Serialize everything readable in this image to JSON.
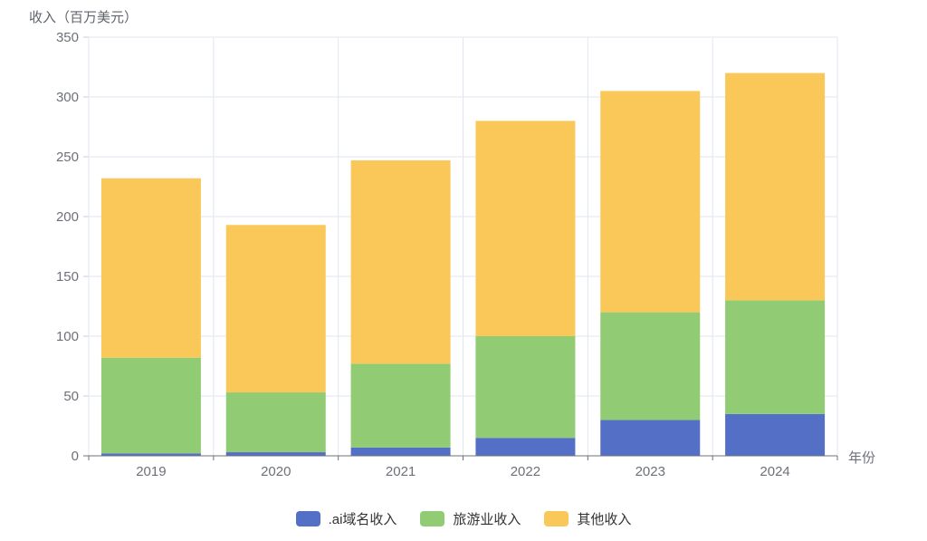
{
  "title": "收入（百万美元）",
  "x_axis_name": "年份",
  "colors": {
    "series_domain": "#5470C6",
    "series_tourism": "#91CC75",
    "series_other": "#FAC858",
    "grid_line": "#E0E6F1",
    "axis_line": "#6E7079",
    "tick_line": "#C9CEDC",
    "tick_label": "#6E7079",
    "axis_name": "#6E7079",
    "legend_text": "#333333",
    "background": "#FFFFFF"
  },
  "chart_data": {
    "type": "bar",
    "stacked": true,
    "title": "收入（百万美元）",
    "xlabel": "年份",
    "ylabel": "收入（百万美元）",
    "categories": [
      "2019",
      "2020",
      "2021",
      "2022",
      "2023",
      "2024"
    ],
    "series": [
      {
        "name": ".ai域名收入",
        "color": "#5470C6",
        "values": [
          2,
          3,
          7,
          15,
          30,
          35
        ]
      },
      {
        "name": "旅游业收入",
        "color": "#91CC75",
        "values": [
          80,
          50,
          70,
          85,
          90,
          95
        ]
      },
      {
        "name": "其他收入",
        "color": "#FAC858",
        "values": [
          150,
          140,
          170,
          180,
          185,
          190
        ]
      }
    ],
    "stack_totals": [
      232,
      193,
      247,
      280,
      305,
      320
    ],
    "ylim": [
      0,
      350
    ],
    "y_ticks": [
      0,
      50,
      100,
      150,
      200,
      250,
      300,
      350
    ],
    "grid": true,
    "legend_position": "bottom"
  }
}
